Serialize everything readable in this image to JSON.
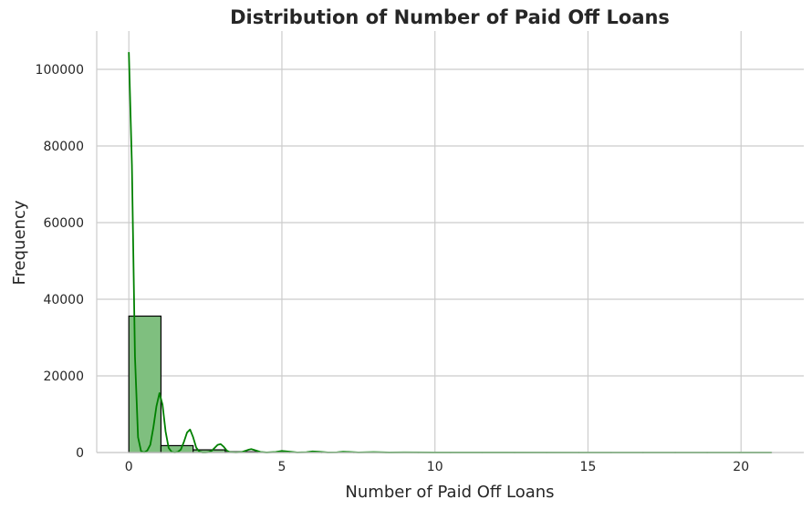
{
  "chart_data": {
    "type": "bar",
    "title": "Distribution of Number of Paid Off Loans",
    "xlabel": "Number of Paid Off Loans",
    "ylabel": "Frequency",
    "xlim": [
      -1.05,
      22.05
    ],
    "ylim": [
      0,
      110000
    ],
    "xticks": [
      0,
      5,
      10,
      15,
      20
    ],
    "yticks": [
      0,
      20000,
      40000,
      60000,
      80000,
      100000
    ],
    "grid": true,
    "bar_color": "#7fbf7f",
    "edge_color": "#000000",
    "kde_color": "#008000",
    "bins": [
      {
        "x0": 0,
        "x1": 1.05,
        "count": 35600
      },
      {
        "x0": 1.05,
        "x1": 2.1,
        "count": 1800
      },
      {
        "x0": 2.1,
        "x1": 3.15,
        "count": 700
      },
      {
        "x0": 3.15,
        "x1": 4.2,
        "count": 200
      },
      {
        "x0": 4.2,
        "x1": 5.25,
        "count": 100
      },
      {
        "x0": 5.25,
        "x1": 6.3,
        "count": 50
      },
      {
        "x0": 6.3,
        "x1": 7.35,
        "count": 30
      },
      {
        "x0": 7.35,
        "x1": 8.4,
        "count": 15
      },
      {
        "x0": 8.4,
        "x1": 9.45,
        "count": 10
      },
      {
        "x0": 9.45,
        "x1": 10.5,
        "count": 5
      },
      {
        "x0": 10.5,
        "x1": 11.55,
        "count": 3
      },
      {
        "x0": 11.55,
        "x1": 12.6,
        "count": 2
      },
      {
        "x0": 12.6,
        "x1": 13.65,
        "count": 2
      },
      {
        "x0": 13.65,
        "x1": 14.7,
        "count": 1
      },
      {
        "x0": 14.7,
        "x1": 15.75,
        "count": 1
      },
      {
        "x0": 15.75,
        "x1": 16.8,
        "count": 1
      },
      {
        "x0": 16.8,
        "x1": 17.85,
        "count": 1
      },
      {
        "x0": 17.85,
        "x1": 18.9,
        "count": 1
      },
      {
        "x0": 18.9,
        "x1": 19.95,
        "count": 1
      },
      {
        "x0": 19.95,
        "x1": 21.0,
        "count": 1
      }
    ],
    "kde": {
      "x": [
        0,
        0.1,
        0.2,
        0.3,
        0.4,
        0.5,
        0.6,
        0.7,
        0.8,
        0.9,
        1.0,
        1.1,
        1.2,
        1.3,
        1.4,
        1.5,
        1.6,
        1.7,
        1.8,
        1.9,
        2.0,
        2.1,
        2.2,
        2.3,
        2.4,
        2.5,
        2.6,
        2.7,
        2.8,
        2.9,
        3.0,
        3.1,
        3.2,
        3.3,
        3.5,
        3.7,
        3.9,
        4.0,
        4.1,
        4.3,
        4.5,
        4.8,
        5.0,
        5.2,
        5.5,
        5.8,
        6.0,
        6.2,
        6.5,
        6.8,
        7.0,
        7.2,
        7.5,
        8.0,
        8.5,
        9.0,
        10.0,
        12.0,
        15.0,
        18.0,
        21.0
      ],
      "y": [
        104500,
        75000,
        25000,
        4000,
        300,
        50,
        500,
        2000,
        6500,
        12000,
        15500,
        12500,
        5500,
        1200,
        150,
        30,
        150,
        800,
        2800,
        5200,
        6000,
        4000,
        1300,
        250,
        20,
        10,
        80,
        400,
        1200,
        2000,
        2200,
        1500,
        500,
        120,
        30,
        150,
        700,
        900,
        650,
        150,
        20,
        150,
        400,
        250,
        30,
        80,
        300,
        200,
        30,
        60,
        200,
        150,
        30,
        100,
        20,
        50,
        20,
        10,
        5,
        5,
        0
      ]
    }
  }
}
